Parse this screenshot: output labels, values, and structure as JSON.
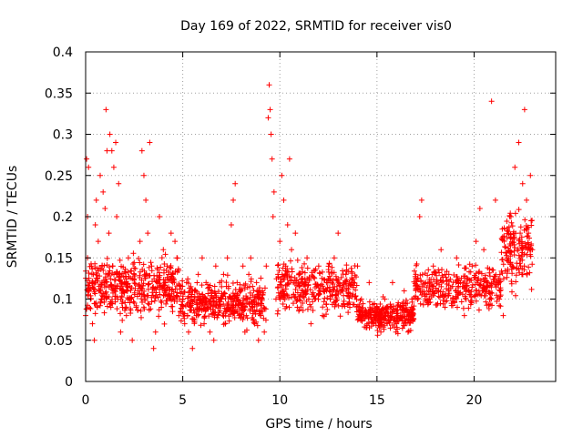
{
  "chart_data": {
    "type": "scatter",
    "title": "Day 169 of 2022, SRMTID for receiver vis0",
    "xlabel": "GPS time / hours",
    "ylabel": "SRMTID / TECUs",
    "xlim": [
      0,
      24.2
    ],
    "ylim": [
      0,
      0.4
    ],
    "x_ticks": [
      0,
      5,
      10,
      15,
      20
    ],
    "x_tick_labels": [
      "0",
      "5",
      "10",
      "15",
      "20"
    ],
    "y_ticks": [
      0,
      0.05,
      0.1,
      0.15,
      0.2,
      0.25,
      0.3,
      0.35,
      0.4
    ],
    "y_tick_labels": [
      "0",
      "0.05",
      "0.1",
      "0.15",
      "0.2",
      "0.25",
      "0.3",
      "0.35",
      "0.4"
    ],
    "grid": true,
    "marker": "+",
    "color": "#ff0000",
    "series": [
      {
        "name": "vis0",
        "points": [
          [
            0.0,
            0.08
          ],
          [
            0.05,
            0.27
          ],
          [
            0.1,
            0.2
          ],
          [
            0.1,
            0.15
          ],
          [
            0.15,
            0.26
          ],
          [
            0.2,
            0.12
          ],
          [
            0.25,
            0.1
          ],
          [
            0.3,
            0.14
          ],
          [
            0.35,
            0.07
          ],
          [
            0.4,
            0.13
          ],
          [
            0.45,
            0.05
          ],
          [
            0.5,
            0.12
          ],
          [
            0.5,
            0.19
          ],
          [
            0.55,
            0.22
          ],
          [
            0.6,
            0.09
          ],
          [
            0.65,
            0.17
          ],
          [
            0.7,
            0.11
          ],
          [
            0.75,
            0.25
          ],
          [
            0.8,
            0.1
          ],
          [
            0.85,
            0.14
          ],
          [
            0.9,
            0.23
          ],
          [
            0.95,
            0.12
          ],
          [
            1.0,
            0.21
          ],
          [
            1.05,
            0.33
          ],
          [
            1.1,
            0.28
          ],
          [
            1.15,
            0.13
          ],
          [
            1.2,
            0.18
          ],
          [
            1.25,
            0.3
          ],
          [
            1.3,
            0.09
          ],
          [
            1.35,
            0.28
          ],
          [
            1.4,
            0.14
          ],
          [
            1.45,
            0.26
          ],
          [
            1.5,
            0.11
          ],
          [
            1.55,
            0.29
          ],
          [
            1.6,
            0.2
          ],
          [
            1.65,
            0.1
          ],
          [
            1.7,
            0.24
          ],
          [
            1.75,
            0.13
          ],
          [
            1.8,
            0.06
          ],
          [
            1.9,
            0.09
          ],
          [
            2.0,
            0.12
          ],
          [
            2.1,
            0.08
          ],
          [
            2.2,
            0.15
          ],
          [
            2.3,
            0.1
          ],
          [
            2.4,
            0.05
          ],
          [
            2.5,
            0.13
          ],
          [
            2.6,
            0.09
          ],
          [
            2.7,
            0.11
          ],
          [
            2.8,
            0.17
          ],
          [
            2.9,
            0.28
          ],
          [
            3.0,
            0.25
          ],
          [
            3.1,
            0.22
          ],
          [
            3.2,
            0.18
          ],
          [
            3.3,
            0.29
          ],
          [
            3.4,
            0.14
          ],
          [
            3.5,
            0.04
          ],
          [
            3.6,
            0.06
          ],
          [
            3.7,
            0.12
          ],
          [
            3.8,
            0.2
          ],
          [
            3.9,
            0.09
          ],
          [
            4.0,
            0.16
          ],
          [
            4.1,
            0.11
          ],
          [
            4.2,
            0.14
          ],
          [
            4.3,
            0.1
          ],
          [
            4.4,
            0.18
          ],
          [
            4.5,
            0.13
          ],
          [
            4.6,
            0.17
          ],
          [
            4.7,
            0.15
          ],
          [
            4.8,
            0.08
          ],
          [
            5.0,
            0.1
          ],
          [
            5.1,
            0.07
          ],
          [
            5.2,
            0.12
          ],
          [
            5.3,
            0.06
          ],
          [
            5.4,
            0.09
          ],
          [
            5.5,
            0.04
          ],
          [
            5.6,
            0.11
          ],
          [
            5.7,
            0.08
          ],
          [
            5.8,
            0.13
          ],
          [
            5.9,
            0.1
          ],
          [
            6.0,
            0.15
          ],
          [
            6.1,
            0.07
          ],
          [
            6.2,
            0.12
          ],
          [
            6.3,
            0.09
          ],
          [
            6.4,
            0.06
          ],
          [
            6.5,
            0.11
          ],
          [
            6.6,
            0.05
          ],
          [
            6.7,
            0.14
          ],
          [
            6.8,
            0.08
          ],
          [
            6.9,
            0.12
          ],
          [
            7.0,
            0.1
          ],
          [
            7.1,
            0.13
          ],
          [
            7.2,
            0.07
          ],
          [
            7.3,
            0.15
          ],
          [
            7.4,
            0.09
          ],
          [
            7.5,
            0.19
          ],
          [
            7.6,
            0.22
          ],
          [
            7.7,
            0.24
          ],
          [
            7.8,
            0.12
          ],
          [
            7.9,
            0.08
          ],
          [
            8.0,
            0.11
          ],
          [
            8.1,
            0.14
          ],
          [
            8.2,
            0.06
          ],
          [
            8.3,
            0.1
          ],
          [
            8.4,
            0.13
          ],
          [
            8.5,
            0.15
          ],
          [
            8.6,
            0.09
          ],
          [
            8.7,
            0.07
          ],
          [
            8.8,
            0.12
          ],
          [
            8.9,
            0.05
          ],
          [
            9.0,
            0.08
          ],
          [
            9.1,
            0.11
          ],
          [
            9.2,
            0.06
          ],
          [
            9.3,
            0.14
          ],
          [
            9.4,
            0.32
          ],
          [
            9.45,
            0.36
          ],
          [
            9.5,
            0.33
          ],
          [
            9.55,
            0.3
          ],
          [
            9.6,
            0.27
          ],
          [
            9.65,
            0.2
          ],
          [
            9.7,
            0.23
          ],
          [
            9.8,
            0.1
          ],
          [
            9.9,
            0.13
          ],
          [
            10.0,
            0.17
          ],
          [
            10.1,
            0.25
          ],
          [
            10.2,
            0.22
          ],
          [
            10.3,
            0.14
          ],
          [
            10.4,
            0.19
          ],
          [
            10.5,
            0.27
          ],
          [
            10.6,
            0.16
          ],
          [
            10.7,
            0.12
          ],
          [
            10.8,
            0.18
          ],
          [
            10.9,
            0.09
          ],
          [
            11.0,
            0.13
          ],
          [
            11.2,
            0.11
          ],
          [
            11.4,
            0.15
          ],
          [
            11.6,
            0.07
          ],
          [
            11.8,
            0.1
          ],
          [
            12.0,
            0.14
          ],
          [
            12.2,
            0.08
          ],
          [
            12.4,
            0.12
          ],
          [
            12.6,
            0.1
          ],
          [
            12.8,
            0.15
          ],
          [
            13.0,
            0.18
          ],
          [
            13.2,
            0.11
          ],
          [
            13.4,
            0.13
          ],
          [
            13.6,
            0.09
          ],
          [
            13.8,
            0.12
          ],
          [
            14.0,
            0.14
          ],
          [
            14.2,
            0.1
          ],
          [
            14.4,
            0.08
          ],
          [
            14.6,
            0.12
          ],
          [
            14.8,
            0.07
          ],
          [
            15.0,
            0.09
          ],
          [
            15.2,
            0.06
          ],
          [
            15.4,
            0.1
          ],
          [
            15.6,
            0.08
          ],
          [
            15.8,
            0.12
          ],
          [
            16.0,
            0.07
          ],
          [
            16.2,
            0.09
          ],
          [
            16.4,
            0.11
          ],
          [
            16.6,
            0.06
          ],
          [
            16.8,
            0.1
          ],
          [
            17.0,
            0.13
          ],
          [
            17.2,
            0.2
          ],
          [
            17.3,
            0.22
          ],
          [
            17.5,
            0.12
          ],
          [
            17.7,
            0.1
          ],
          [
            17.9,
            0.14
          ],
          [
            18.1,
            0.11
          ],
          [
            18.3,
            0.16
          ],
          [
            18.5,
            0.09
          ],
          [
            18.7,
            0.13
          ],
          [
            18.9,
            0.1
          ],
          [
            19.1,
            0.15
          ],
          [
            19.3,
            0.12
          ],
          [
            19.5,
            0.08
          ],
          [
            19.7,
            0.11
          ],
          [
            19.9,
            0.14
          ],
          [
            20.1,
            0.17
          ],
          [
            20.3,
            0.21
          ],
          [
            20.5,
            0.16
          ],
          [
            20.7,
            0.12
          ],
          [
            20.9,
            0.34
          ],
          [
            21.1,
            0.22
          ],
          [
            21.3,
            0.1
          ],
          [
            21.5,
            0.08
          ],
          [
            21.7,
            0.15
          ],
          [
            21.9,
            0.2
          ],
          [
            22.1,
            0.26
          ],
          [
            22.3,
            0.29
          ],
          [
            22.5,
            0.24
          ],
          [
            22.6,
            0.33
          ],
          [
            22.7,
            0.22
          ],
          [
            22.8,
            0.18
          ],
          [
            22.9,
            0.25
          ],
          [
            23.0,
            0.16
          ]
        ]
      }
    ],
    "dense_bands": [
      {
        "x": [
          0.0,
          4.9
        ],
        "center": 0.115,
        "spread": 0.035,
        "count": 420
      },
      {
        "x": [
          4.9,
          9.3
        ],
        "center": 0.095,
        "spread": 0.025,
        "count": 380
      },
      {
        "x": [
          9.8,
          14.0
        ],
        "center": 0.115,
        "spread": 0.03,
        "count": 320
      },
      {
        "x": [
          14.0,
          16.9
        ],
        "center": 0.08,
        "spread": 0.018,
        "count": 300
      },
      {
        "x": [
          16.9,
          21.4
        ],
        "center": 0.115,
        "spread": 0.028,
        "count": 330
      },
      {
        "x": [
          21.4,
          23.0
        ],
        "center": 0.16,
        "spread": 0.045,
        "count": 160
      }
    ]
  }
}
